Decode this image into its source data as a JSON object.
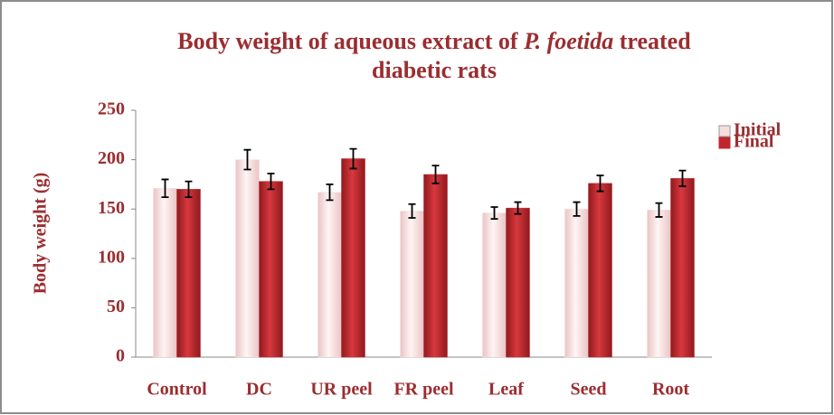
{
  "chart_data": {
    "type": "bar",
    "title": [
      "Body weight of aqueous extract of",
      "P. foetida",
      "treated",
      "diabetic rats"
    ],
    "y_label": "Body weight (g)",
    "categories": [
      "Control",
      "DC",
      "UR peel",
      "FR peel",
      "Leaf",
      "Seed",
      "Root"
    ],
    "series": [
      {
        "name": "Initial",
        "color": "#f7dede",
        "values": [
          171,
          200,
          167,
          148,
          146,
          150,
          149
        ],
        "errors": [
          9,
          10,
          8,
          7,
          6,
          7,
          7
        ]
      },
      {
        "name": "Final",
        "color": "#c0272d",
        "values": [
          170,
          178,
          201,
          185,
          151,
          176,
          181
        ],
        "errors": [
          8,
          8,
          10,
          9,
          6,
          8,
          8
        ]
      }
    ],
    "ylim": [
      0,
      250
    ],
    "yticks": [
      0,
      50,
      100,
      150,
      200,
      250
    ],
    "grid": false,
    "legend": "right"
  }
}
